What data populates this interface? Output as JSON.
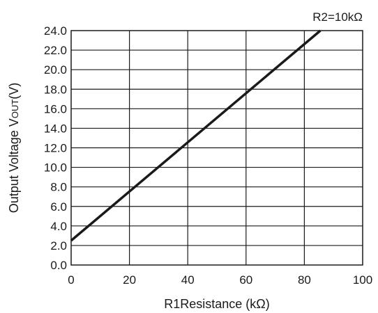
{
  "chart_data": {
    "type": "line",
    "annotation": "R2=10kΩ",
    "xlabel": "R1Resistance (kΩ)",
    "ylabel": "Output Voltage Vout(V)",
    "ylabel_main": "Output Voltage V",
    "ylabel_sub": "OUT",
    "ylabel_unit": "(V)",
    "xlim": [
      0,
      100
    ],
    "ylim": [
      0,
      24
    ],
    "x_ticks": [
      "0",
      "20",
      "40",
      "60",
      "80",
      "100"
    ],
    "y_ticks": [
      "0.0",
      "2.0",
      "4.0",
      "6.0",
      "8.0",
      "10.0",
      "12.0",
      "14.0",
      "16.0",
      "18.0",
      "20.0",
      "22.0",
      "24.0"
    ],
    "grid": {
      "x_major_step": 20,
      "y_major_step": 2
    },
    "series": [
      {
        "x": [
          0,
          85.5
        ],
        "y": [
          2.5,
          24.0
        ]
      }
    ],
    "line_color": "#1a1a1a"
  }
}
